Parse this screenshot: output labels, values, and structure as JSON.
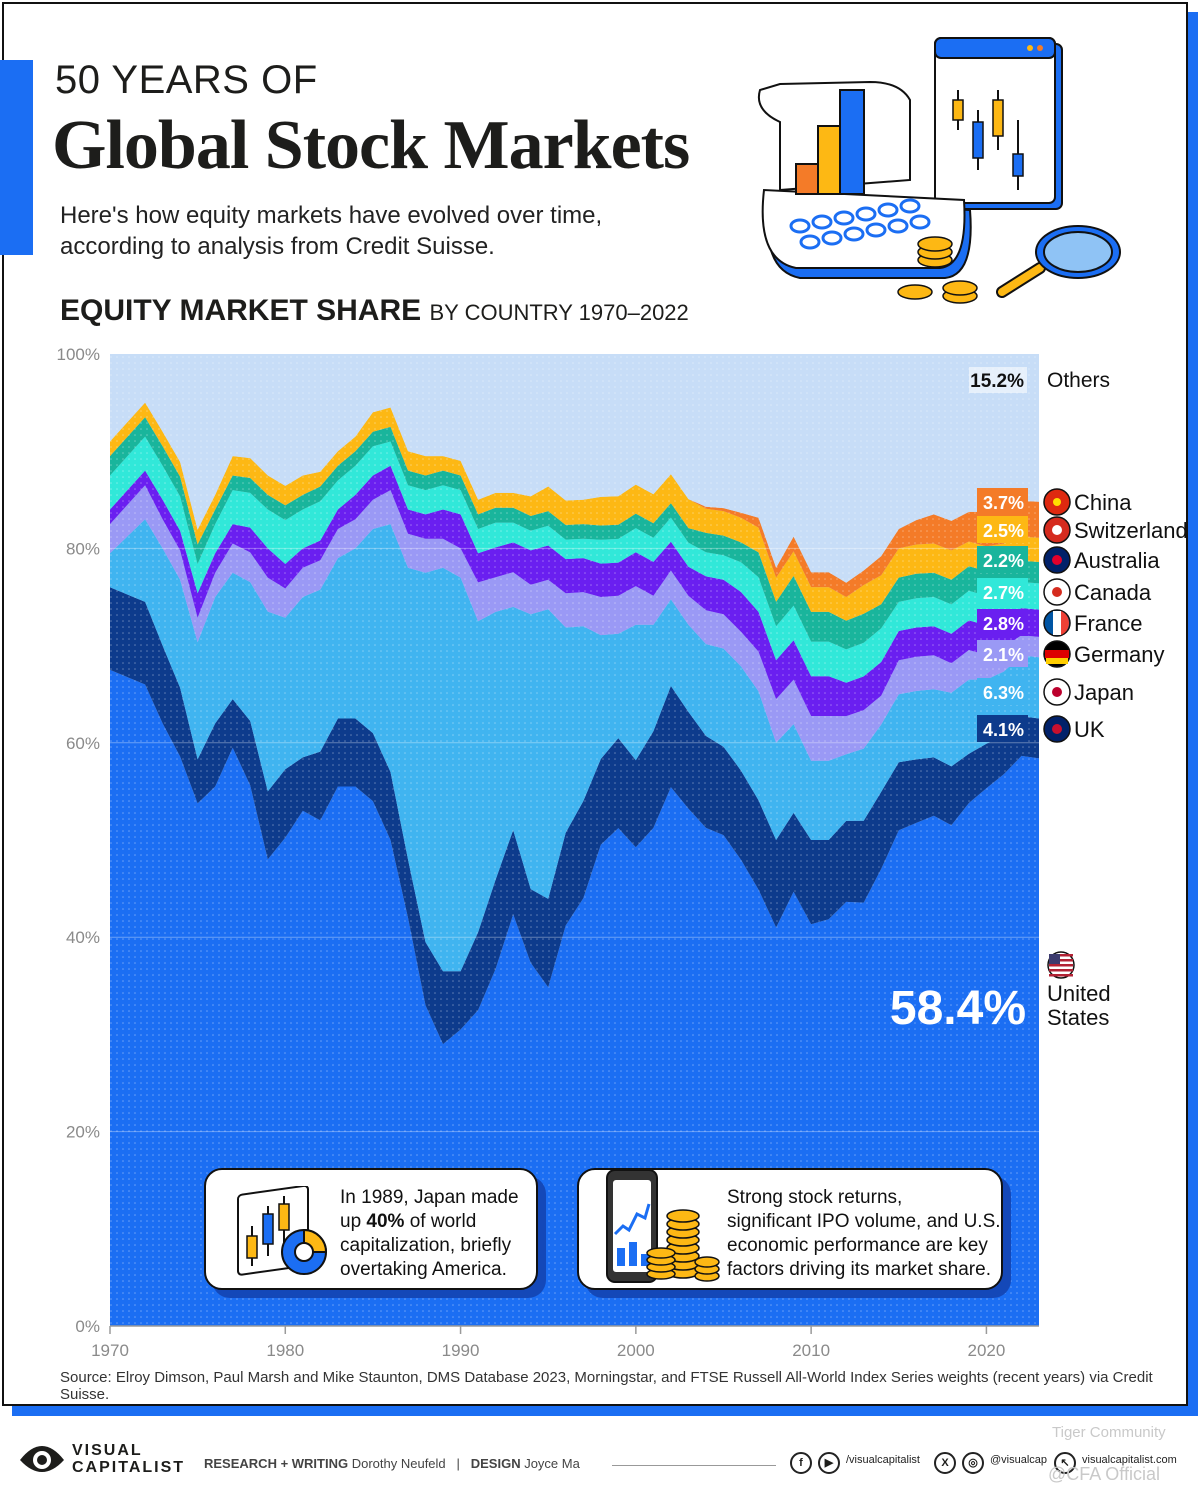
{
  "header": {
    "kicker": "50 YEARS OF",
    "title": "Global Stock Markets",
    "subtitle_line1": "Here's how equity markets have evolved over time,",
    "subtitle_line2": "according to analysis from Credit Suisse.",
    "chart_title": "EQUITY MARKET SHARE",
    "chart_subtitle": "BY COUNTRY 1970–2022"
  },
  "chart_data": {
    "type": "area",
    "stacking": "stacked-percent",
    "ylim": [
      0,
      100
    ],
    "xlim": [
      1970,
      2023
    ],
    "grid": true,
    "legend_placement": "right",
    "x": [
      1970,
      1972,
      1973,
      1974,
      1975,
      1976,
      1977,
      1978,
      1979,
      1980,
      1981,
      1982,
      1983,
      1984,
      1985,
      1986,
      1987,
      1988,
      1989,
      1990,
      1991,
      1992,
      1993,
      1994,
      1995,
      1996,
      1997,
      1998,
      1999,
      2000,
      2001,
      2002,
      2003,
      2004,
      2005,
      2006,
      2007,
      2008,
      2009,
      2010,
      2011,
      2012,
      2013,
      2014,
      2015,
      2016,
      2017,
      2018,
      2019,
      2020,
      2021,
      2022,
      2023
    ],
    "x_ticks": [
      "1970",
      "1980",
      "1990",
      "2000",
      "2010",
      "2020"
    ],
    "y_ticks": [
      "0%",
      "20%",
      "40%",
      "60%",
      "80%",
      "100%"
    ],
    "series": [
      {
        "name": "United States",
        "value_2022": "58.4%",
        "color": "#1b6ef3",
        "values": [
          67.5,
          66,
          62,
          58,
          53.5,
          55.5,
          59.5,
          54.5,
          48,
          50,
          53,
          51.5,
          55.5,
          55.5,
          54,
          50,
          42,
          33,
          29,
          30.5,
          32.5,
          36,
          41.5,
          37,
          34.5,
          41,
          44,
          50.5,
          52.5,
          49.5,
          51.5,
          56,
          53.5,
          51.5,
          50,
          47,
          44,
          41,
          44,
          40.5,
          41,
          44.5,
          44,
          47.5,
          51,
          51.5,
          52.5,
          51,
          53,
          54.5,
          56.5,
          59,
          58.4
        ]
      },
      {
        "name": "UK",
        "value_2022": "4.1%",
        "color": "#0d3b8c",
        "values": [
          8.5,
          8.5,
          8,
          7,
          4.5,
          6.5,
          5,
          6.5,
          7,
          7,
          5.5,
          7,
          7,
          7,
          7,
          7,
          6,
          6.5,
          7.5,
          6,
          8,
          9,
          8.5,
          7.5,
          9,
          9.5,
          10,
          9,
          9.5,
          9,
          10,
          10.5,
          10,
          9.5,
          9,
          9,
          9,
          9,
          8,
          8.5,
          8,
          8.5,
          8.5,
          8,
          7,
          6.5,
          6,
          6,
          5,
          4.5,
          4,
          4.1,
          4.1
        ]
      },
      {
        "name": "Japan",
        "value_2022": "6.3%",
        "color": "#40b4f0",
        "values": [
          3.5,
          8.5,
          10,
          11,
          12,
          13,
          13,
          14,
          18.5,
          15.5,
          16.5,
          16.5,
          16.5,
          17.5,
          21,
          25.5,
          30,
          38,
          41.5,
          40.5,
          32,
          27,
          22.5,
          28,
          29.5,
          21,
          18,
          13,
          11,
          14,
          11,
          9,
          9,
          9.5,
          10,
          10.5,
          11,
          10,
          9,
          8,
          8,
          7,
          7.5,
          7,
          7,
          7,
          7,
          7.5,
          7.5,
          6.5,
          6.5,
          6.3,
          6.3
        ]
      },
      {
        "name": "Germany",
        "value_2022": "2.1%",
        "color": "#9a99f5",
        "values": [
          3,
          3.5,
          3,
          3,
          2.5,
          2.5,
          3,
          3,
          3.5,
          3,
          3,
          3,
          3,
          3,
          3,
          3.5,
          3.5,
          3.5,
          3,
          3,
          4,
          3.5,
          3.5,
          3,
          3,
          3.5,
          3.5,
          4,
          4,
          4,
          3,
          3,
          3,
          3.5,
          3.5,
          3.5,
          4,
          4.5,
          4.5,
          4.5,
          4.5,
          4,
          4,
          3,
          3.5,
          3.5,
          3.5,
          3,
          3,
          2.5,
          2.5,
          2.1,
          2.1
        ]
      },
      {
        "name": "France",
        "value_2022": "2.8%",
        "color": "#6a1ff0",
        "values": [
          1.5,
          1.5,
          2,
          2,
          2.5,
          2,
          2,
          2.5,
          3,
          2.5,
          2,
          2,
          2,
          2.5,
          2.5,
          2.5,
          2.5,
          2.5,
          3,
          3.5,
          3,
          3,
          3,
          3.5,
          3.5,
          3.5,
          3.5,
          3.5,
          3.5,
          3.5,
          3.5,
          3,
          3,
          3.5,
          3.5,
          4,
          4,
          4,
          4,
          4,
          4,
          3.5,
          3.5,
          3.5,
          3,
          3,
          3,
          3,
          3,
          3,
          3,
          2.8,
          2.8
        ]
      },
      {
        "name": "Canada",
        "value_2022": "2.7%",
        "color": "#31e8d9",
        "values": [
          3.5,
          3.5,
          3.5,
          3.5,
          3,
          3,
          3.5,
          3.5,
          4,
          4.5,
          4,
          4,
          3,
          3,
          3,
          2.5,
          2.5,
          2.5,
          2.5,
          2.5,
          2.5,
          2.5,
          2,
          2,
          2,
          2,
          2,
          2.5,
          2.5,
          2.5,
          2.5,
          2.5,
          2.5,
          2.5,
          2.5,
          3,
          3.5,
          3.5,
          3.5,
          3.5,
          3.5,
          3.5,
          3.5,
          3.5,
          3,
          3,
          3,
          3,
          3,
          3,
          2.8,
          2.7,
          2.7
        ]
      },
      {
        "name": "Australia",
        "value_2022": "2.2%",
        "color": "#19b59c",
        "values": [
          2,
          2,
          2,
          2,
          2,
          1.5,
          1.5,
          1.5,
          1.5,
          1.5,
          1.5,
          1.5,
          1.5,
          1.5,
          1.5,
          1.5,
          1.5,
          1.5,
          1.5,
          1.5,
          1.5,
          1.5,
          1.5,
          1.5,
          1.5,
          1.5,
          1.5,
          1.5,
          1.5,
          1.5,
          1.5,
          1.5,
          1.5,
          2,
          2,
          2,
          2.5,
          2.5,
          3,
          3,
          3,
          3,
          3,
          2.5,
          2.5,
          2.5,
          2.5,
          2.5,
          2.5,
          2.5,
          2.3,
          2.2,
          2.2
        ]
      },
      {
        "name": "Switzerland",
        "value_2022": "2.5%",
        "color": "#fdb814",
        "values": [
          1.5,
          1.5,
          1.5,
          1.5,
          1.5,
          1.5,
          2,
          2,
          2,
          2,
          2,
          1.5,
          1.5,
          1.5,
          2,
          2,
          2,
          2,
          1.5,
          1.5,
          1.5,
          1.5,
          1.5,
          2,
          2.5,
          2.5,
          2.5,
          3,
          3,
          3,
          3,
          3,
          3,
          2.5,
          2.5,
          2.5,
          2.5,
          2.5,
          2.5,
          2.5,
          2.5,
          2.5,
          3,
          3,
          3,
          3,
          3,
          3,
          2.5,
          2.5,
          2.5,
          2.5,
          2.5
        ]
      },
      {
        "name": "China",
        "value_2022": "3.7%",
        "color": "#f47b28",
        "values": [
          0,
          0,
          0,
          0,
          0,
          0,
          0,
          0,
          0,
          0,
          0,
          0,
          0,
          0,
          0,
          0,
          0,
          0,
          0,
          0,
          0,
          0,
          0,
          0,
          0,
          0,
          0,
          0,
          0,
          0,
          0,
          0,
          0,
          0.2,
          0.3,
          0.5,
          1,
          1,
          1.5,
          1.5,
          1.5,
          1.5,
          1.5,
          2,
          2,
          2.5,
          3,
          3,
          3,
          3.5,
          4,
          3.7,
          3.7
        ]
      },
      {
        "name": "Others",
        "value_2022": "15.2%",
        "color": "#c7ddf7",
        "values": [
          9,
          5,
          8,
          11,
          18,
          14.5,
          10.5,
          10.5,
          12.5,
          13.5,
          12.5,
          12,
          10,
          8.5,
          6,
          5.5,
          10,
          10.5,
          10.5,
          11,
          15,
          14,
          14,
          14.5,
          13.5,
          15,
          15,
          15,
          15,
          13.5,
          14.5,
          12.5,
          15,
          15.8,
          15.7,
          16,
          16.5,
          22,
          18.5,
          22,
          22,
          24,
          22.5,
          21,
          18,
          17,
          16.5,
          17,
          16,
          16,
          15.4,
          15.2,
          15.2
        ]
      }
    ]
  },
  "callouts": [
    {
      "line1": "In 1989, Japan made",
      "line2_pre": "up ",
      "line2_bold": "40%",
      "line2_post": " of world",
      "line3": "capitalization, briefly",
      "line4": "overtaking America."
    },
    {
      "line1": "Strong stock returns,",
      "line2": "significant IPO volume, and U.S.",
      "line3": "economic performance are key",
      "line4": "factors driving its market share."
    }
  ],
  "source": "Source: Elroy Dimson, Paul Marsh and Mike Staunton, DMS Database 2023, Morningstar, and FTSE Russell All-World Index Series weights (recent years) via Credit Suisse.",
  "footer": {
    "brand_line1": "VISUAL",
    "brand_line2": "CAPITALIST",
    "research_label": "RESEARCH + WRITING",
    "research_name": "Dorothy Neufeld",
    "design_label": "DESIGN",
    "design_name": "Joyce Ma",
    "social1": "/visualcapitalist",
    "social2": "@visualcap",
    "social3": "visualcapitalist.com",
    "watermark1": "Tiger Community",
    "watermark2": "@CFA Official"
  },
  "colors": {
    "accent": "#1b6ef3",
    "dark": "#1d1d1b"
  }
}
